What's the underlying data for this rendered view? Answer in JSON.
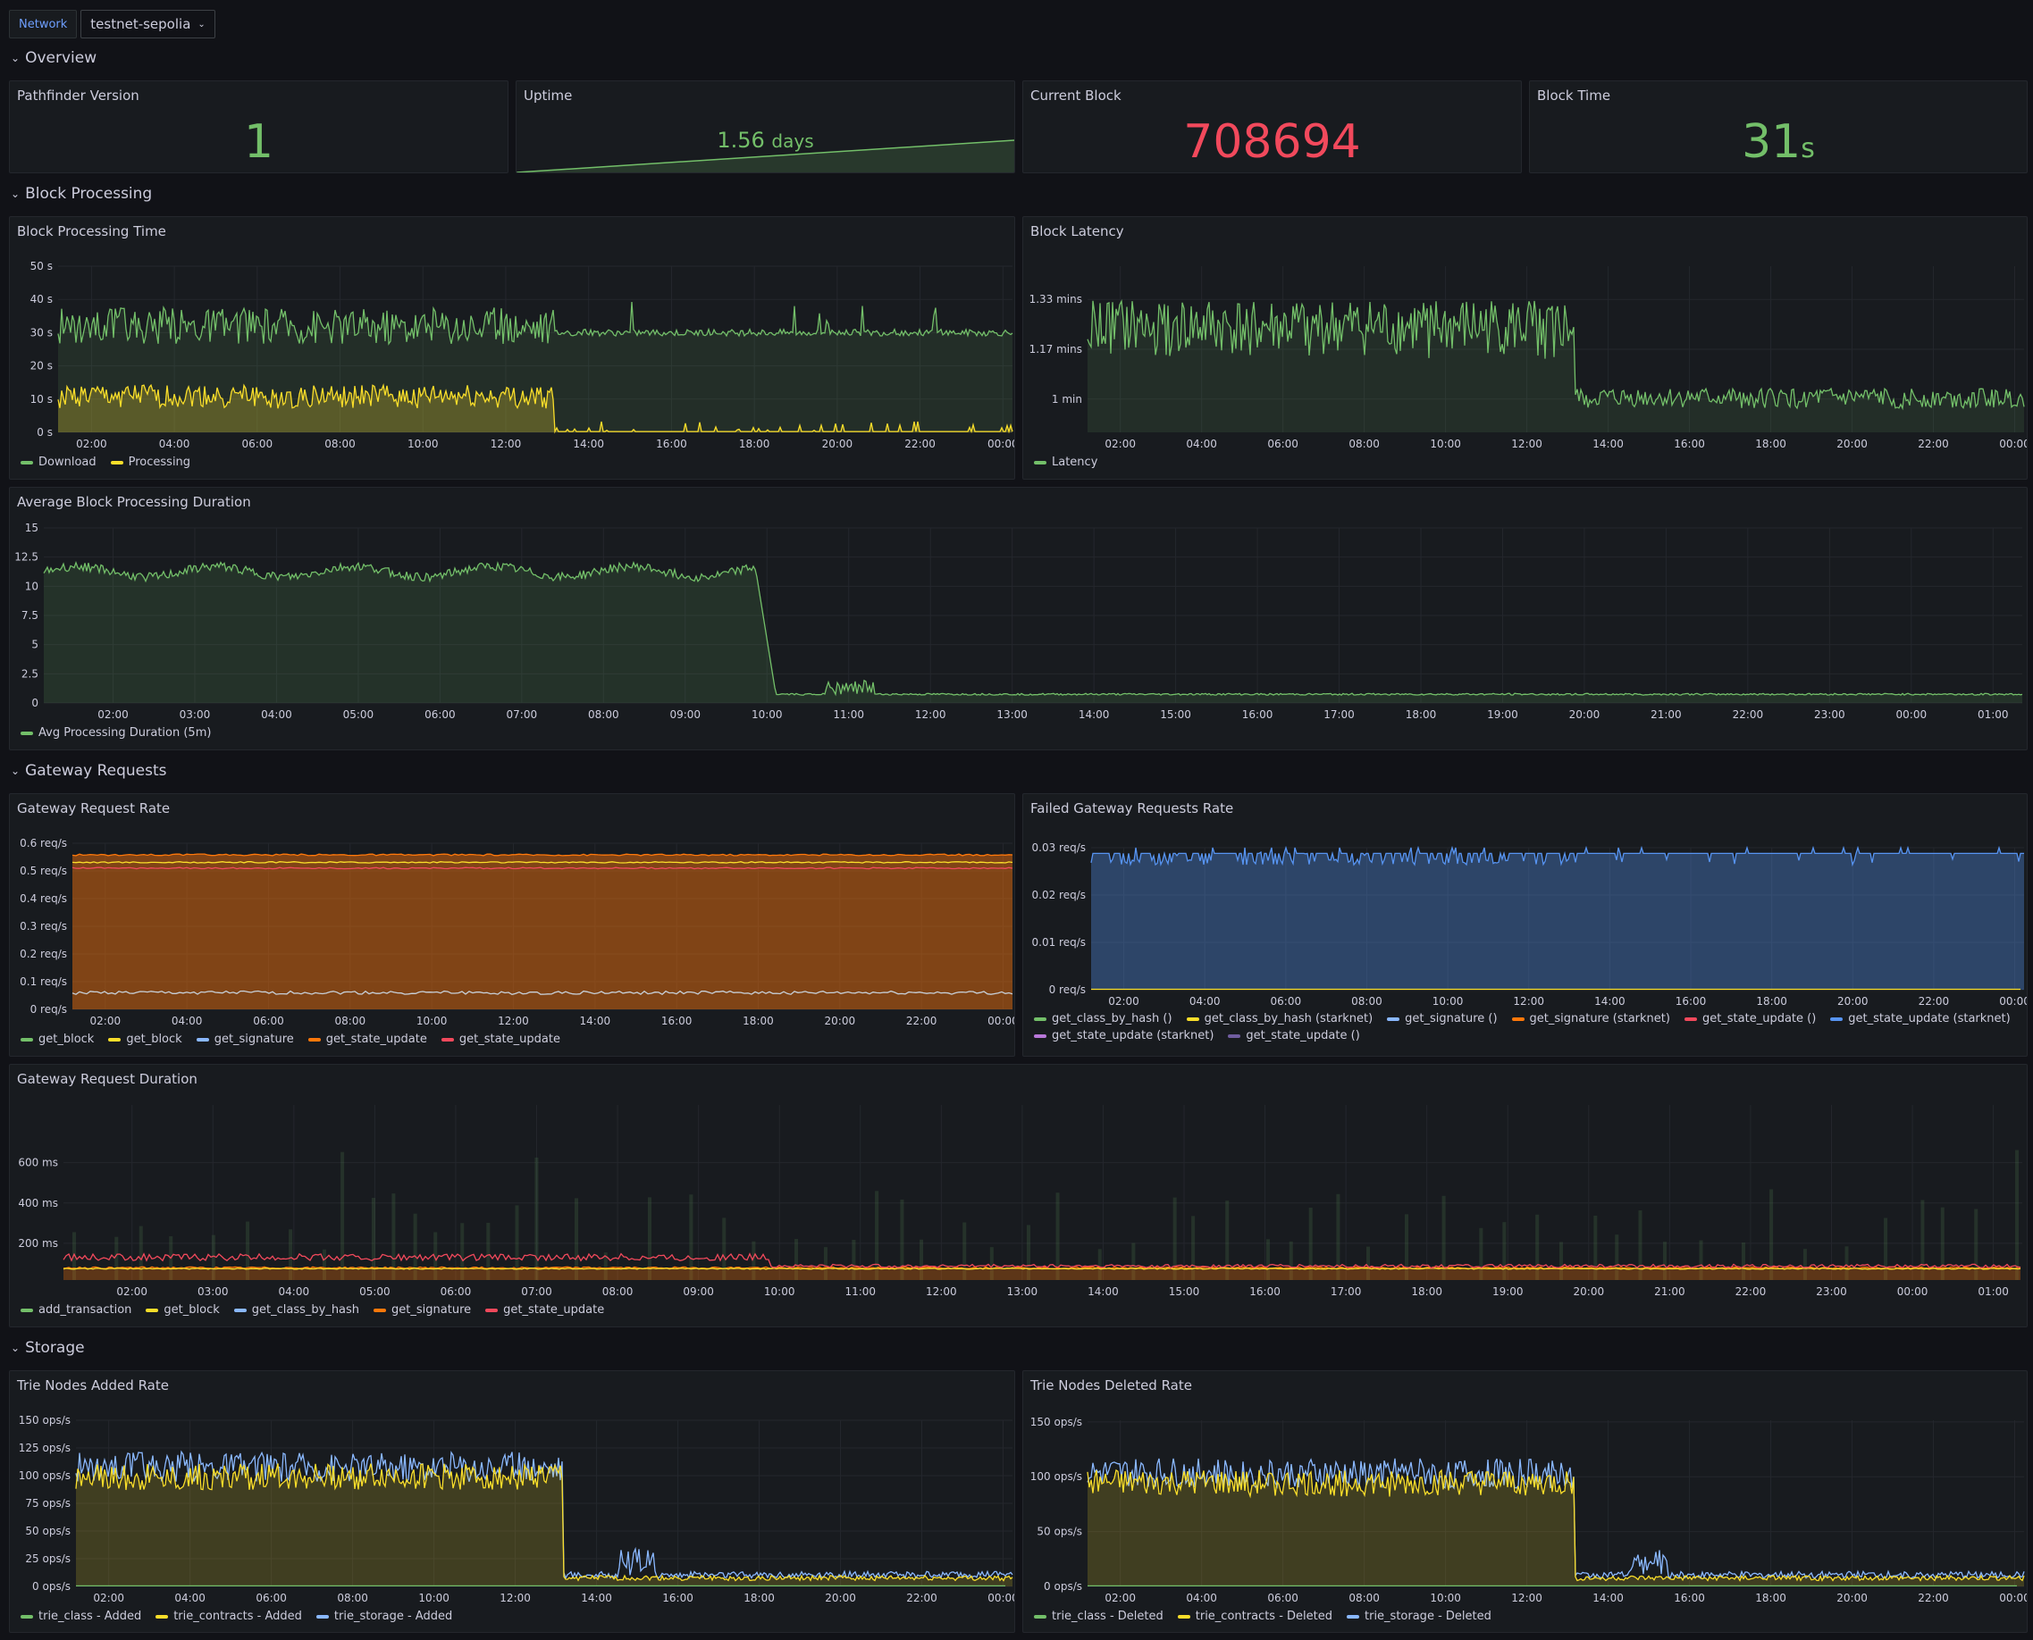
{
  "header": {
    "network_label": "Network",
    "network_value": "testnet-sepolia"
  },
  "rows": {
    "overview": "Overview",
    "block_processing": "Block Processing",
    "gateway_requests": "Gateway Requests",
    "storage": "Storage"
  },
  "stats": {
    "pathfinder_version": {
      "title": "Pathfinder Version",
      "value": "1",
      "color": "#73bf69"
    },
    "uptime": {
      "title": "Uptime",
      "value": "1.56",
      "unit": "days",
      "color": "#73bf69"
    },
    "current_block": {
      "title": "Current Block",
      "value": "708694",
      "color": "#f2495c"
    },
    "block_time": {
      "title": "Block Time",
      "value": "31",
      "unit": "s",
      "color": "#73bf69"
    }
  },
  "charts": {
    "block_processing_time": {
      "title": "Block Processing Time",
      "type": "line",
      "y_ticks": [
        "0 s",
        "10 s",
        "20 s",
        "30 s",
        "40 s",
        "50 s"
      ],
      "x_ticks": [
        "02:00",
        "04:00",
        "06:00",
        "08:00",
        "10:00",
        "12:00",
        "14:00",
        "16:00",
        "18:00",
        "20:00",
        "22:00",
        "00:00"
      ],
      "legend": [
        {
          "name": "Download",
          "color": "#73bf69"
        },
        {
          "name": "Processing",
          "color": "#fade2a"
        }
      ]
    },
    "block_latency": {
      "title": "Block Latency",
      "type": "line",
      "y_ticks": [
        "1 min",
        "1.17 mins",
        "1.33 mins"
      ],
      "x_ticks": [
        "02:00",
        "04:00",
        "06:00",
        "08:00",
        "10:00",
        "12:00",
        "14:00",
        "16:00",
        "18:00",
        "20:00",
        "22:00",
        "00:00"
      ],
      "legend": [
        {
          "name": "Latency",
          "color": "#73bf69"
        }
      ]
    },
    "avg_block_processing": {
      "title": "Average Block Processing Duration",
      "type": "line",
      "y_ticks": [
        "0",
        "2.5",
        "5",
        "7.5",
        "10",
        "12.5",
        "15"
      ],
      "x_ticks": [
        "02:00",
        "03:00",
        "04:00",
        "05:00",
        "06:00",
        "07:00",
        "08:00",
        "09:00",
        "10:00",
        "11:00",
        "12:00",
        "13:00",
        "14:00",
        "15:00",
        "16:00",
        "17:00",
        "18:00",
        "19:00",
        "20:00",
        "21:00",
        "22:00",
        "23:00",
        "00:00",
        "01:00"
      ],
      "legend": [
        {
          "name": "Avg Processing Duration (5m)",
          "color": "#73bf69"
        }
      ]
    },
    "gateway_request_rate": {
      "title": "Gateway Request Rate",
      "type": "line",
      "y_ticks": [
        "0 req/s",
        "0.1 req/s",
        "0.2 req/s",
        "0.3 req/s",
        "0.4 req/s",
        "0.5 req/s",
        "0.6 req/s"
      ],
      "x_ticks": [
        "02:00",
        "04:00",
        "06:00",
        "08:00",
        "10:00",
        "12:00",
        "14:00",
        "16:00",
        "18:00",
        "20:00",
        "22:00",
        "00:00"
      ],
      "legend": [
        {
          "name": "get_block",
          "color": "#73bf69"
        },
        {
          "name": "get_block",
          "color": "#fade2a"
        },
        {
          "name": "get_signature",
          "color": "#8ab8ff"
        },
        {
          "name": "get_state_update",
          "color": "#ff780a"
        },
        {
          "name": "get_state_update",
          "color": "#f2495c"
        }
      ]
    },
    "failed_gateway_rate": {
      "title": "Failed Gateway Requests Rate",
      "type": "line",
      "y_ticks": [
        "0 req/s",
        "0.01 req/s",
        "0.02 req/s",
        "0.03 req/s"
      ],
      "x_ticks": [
        "02:00",
        "04:00",
        "06:00",
        "08:00",
        "10:00",
        "12:00",
        "14:00",
        "16:00",
        "18:00",
        "20:00",
        "22:00",
        "00:00"
      ],
      "legend": [
        {
          "name": "get_class_by_hash ()",
          "color": "#73bf69"
        },
        {
          "name": "get_class_by_hash (starknet)",
          "color": "#fade2a"
        },
        {
          "name": "get_signature ()",
          "color": "#8ab8ff"
        },
        {
          "name": "get_signature (starknet)",
          "color": "#ff780a"
        },
        {
          "name": "get_state_update ()",
          "color": "#f2495c"
        },
        {
          "name": "get_state_update (starknet)",
          "color": "#5794f2"
        },
        {
          "name": "get_state_update (starknet)",
          "color": "#b877d9"
        },
        {
          "name": "get_state_update ()",
          "color": "#705da0"
        }
      ]
    },
    "gateway_request_duration": {
      "title": "Gateway Request Duration",
      "type": "line",
      "y_ticks": [
        "200 ms",
        "400 ms",
        "600 ms"
      ],
      "x_ticks": [
        "02:00",
        "03:00",
        "04:00",
        "05:00",
        "06:00",
        "07:00",
        "08:00",
        "09:00",
        "10:00",
        "11:00",
        "12:00",
        "13:00",
        "14:00",
        "15:00",
        "16:00",
        "17:00",
        "18:00",
        "19:00",
        "20:00",
        "21:00",
        "22:00",
        "23:00",
        "00:00",
        "01:00"
      ],
      "legend": [
        {
          "name": "add_transaction",
          "color": "#73bf69"
        },
        {
          "name": "get_block",
          "color": "#fade2a"
        },
        {
          "name": "get_class_by_hash",
          "color": "#8ab8ff"
        },
        {
          "name": "get_signature",
          "color": "#ff780a"
        },
        {
          "name": "get_state_update",
          "color": "#f2495c"
        }
      ]
    },
    "trie_added_rate": {
      "title": "Trie Nodes Added Rate",
      "type": "line",
      "y_ticks": [
        "0 ops/s",
        "25 ops/s",
        "50 ops/s",
        "75 ops/s",
        "100 ops/s",
        "125 ops/s",
        "150 ops/s"
      ],
      "x_ticks": [
        "02:00",
        "04:00",
        "06:00",
        "08:00",
        "10:00",
        "12:00",
        "14:00",
        "16:00",
        "18:00",
        "20:00",
        "22:00",
        "00:00"
      ],
      "legend": [
        {
          "name": "trie_class - Added",
          "color": "#73bf69"
        },
        {
          "name": "trie_contracts - Added",
          "color": "#fade2a"
        },
        {
          "name": "trie_storage - Added",
          "color": "#8ab8ff"
        }
      ]
    },
    "trie_deleted_rate": {
      "title": "Trie Nodes Deleted Rate",
      "type": "line",
      "y_ticks": [
        "0 ops/s",
        "50 ops/s",
        "100 ops/s",
        "150 ops/s"
      ],
      "x_ticks": [
        "02:00",
        "04:00",
        "06:00",
        "08:00",
        "10:00",
        "12:00",
        "14:00",
        "16:00",
        "18:00",
        "20:00",
        "22:00",
        "00:00"
      ],
      "legend": [
        {
          "name": "trie_class - Deleted",
          "color": "#73bf69"
        },
        {
          "name": "trie_contracts - Deleted",
          "color": "#fade2a"
        },
        {
          "name": "trie_storage - Deleted",
          "color": "#8ab8ff"
        }
      ]
    }
  }
}
